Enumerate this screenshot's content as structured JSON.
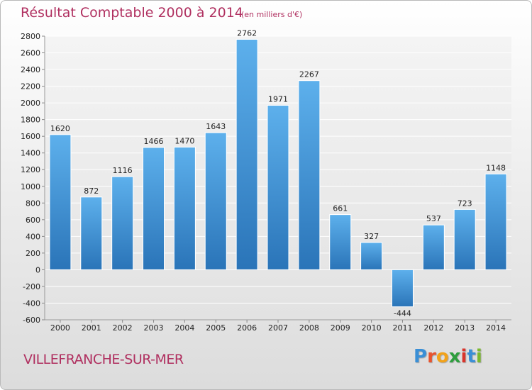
{
  "title": "Résultat Comptable 2000 à 2014",
  "subtitle": "(en milliers d'€)",
  "place": "VILLEFRANCHE-SUR-MER",
  "logo": {
    "letters": [
      "P",
      "r",
      "o",
      "x",
      "i",
      "t",
      "i"
    ],
    "colors": [
      "#3a8fd6",
      "#e8542e",
      "#f2a21a",
      "#2e9e3e",
      "#d9342b",
      "#3a8fd6",
      "#7bb92f"
    ]
  },
  "colors": {
    "bar": "#3a8fd6",
    "bar_light": "#5db0ec",
    "bar_dark": "#2a74b8",
    "text": "#b03060",
    "grid": "#ffffff"
  },
  "chart_data": {
    "type": "bar",
    "categories": [
      "2000",
      "2001",
      "2002",
      "2003",
      "2004",
      "2005",
      "2006",
      "2007",
      "2008",
      "2009",
      "2010",
      "2011",
      "2012",
      "2013",
      "2014"
    ],
    "values": [
      1620,
      872,
      1116,
      1466,
      1470,
      1643,
      2762,
      1971,
      2267,
      661,
      327,
      -444,
      537,
      723,
      1148
    ],
    "ylim": [
      -600,
      2800
    ],
    "yticks": [
      -600,
      -400,
      -200,
      0,
      200,
      400,
      600,
      800,
      1000,
      1200,
      1400,
      1600,
      1800,
      2000,
      2200,
      2400,
      2600,
      2800
    ],
    "grid": true,
    "legend": "none"
  }
}
